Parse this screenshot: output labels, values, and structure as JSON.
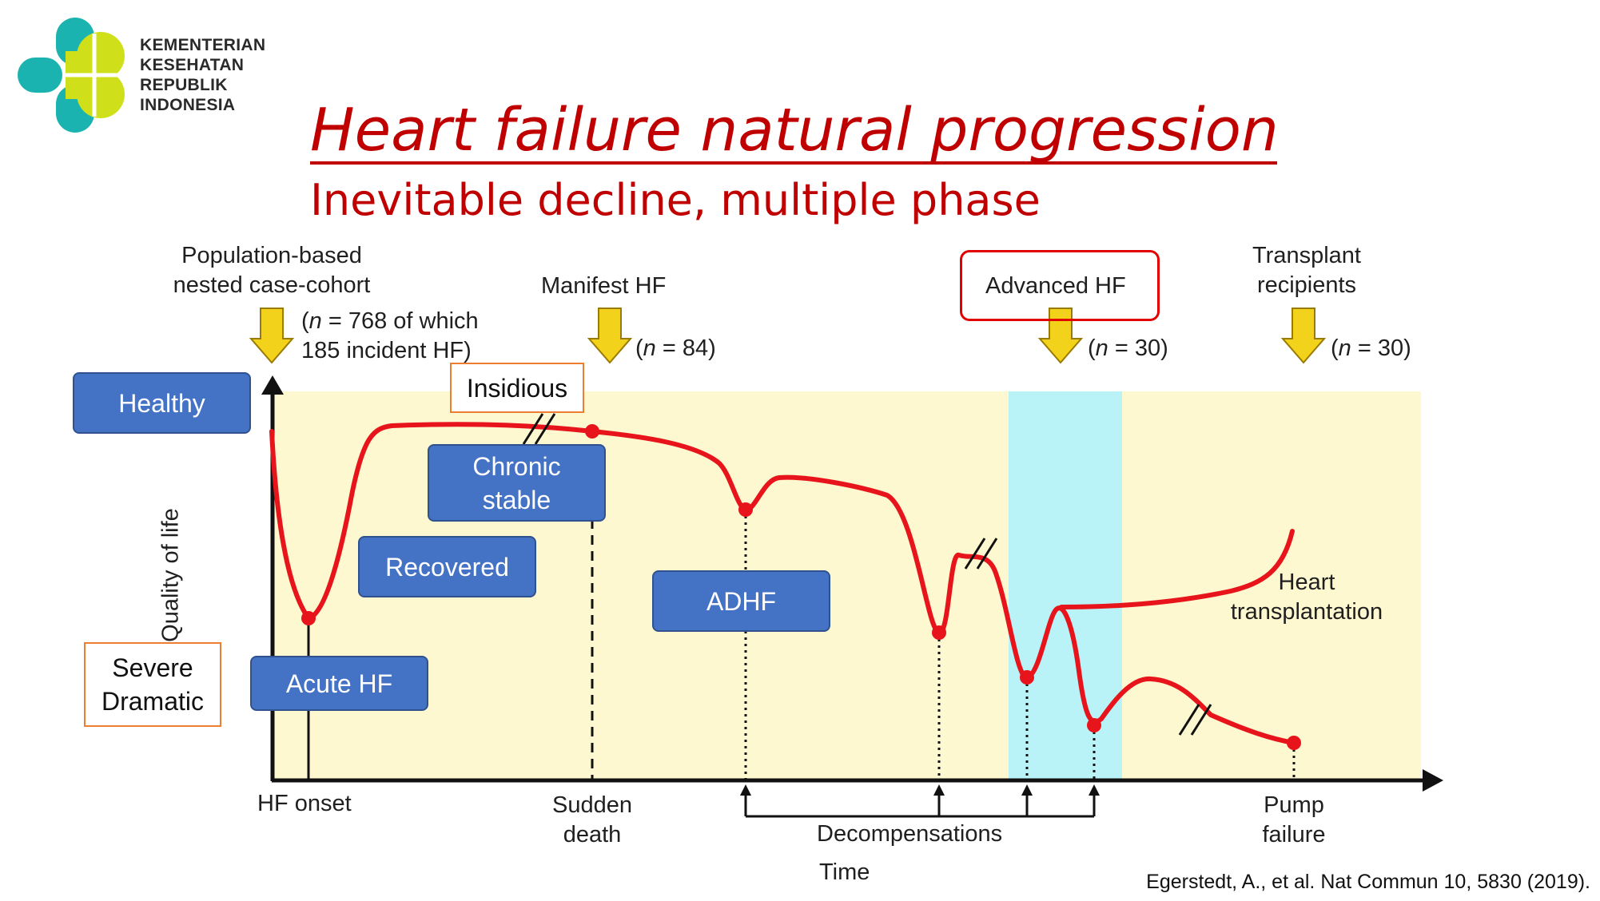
{
  "logo": {
    "line1": "KEMENTERIAN",
    "line2": "KESEHATAN",
    "line3": "REPUBLIK",
    "line4": "INDONESIA"
  },
  "title": "Heart failure natural progression",
  "subtitle": "Inevitable decline, multiple phase",
  "cohorts": {
    "population": {
      "line1": "Population-based",
      "line2": "nested case-cohort",
      "n_prefix": "(",
      "n_var": "n",
      "n_rest": " = 768 of which",
      "n_line2": "185 incident HF)"
    },
    "manifest": {
      "label": "Manifest HF",
      "n_prefix": "(",
      "n_var": "n",
      "n_rest": " = 84)"
    },
    "advanced": {
      "label": "Advanced HF",
      "n_prefix": "(",
      "n_var": "n",
      "n_rest": " = 30)"
    },
    "transplant": {
      "line1": "Transplant",
      "line2": "recipients",
      "n_prefix": "(",
      "n_var": "n",
      "n_rest": " = 30)"
    }
  },
  "stages": {
    "healthy": "Healthy",
    "insidious": "Insidious",
    "chronic_stable_line1": "Chronic",
    "chronic_stable_line2": "stable",
    "recovered": "Recovered",
    "adhf": "ADHF",
    "acute_hf": "Acute HF",
    "severe_line1": "Severe",
    "severe_line2": "Dramatic"
  },
  "axes": {
    "ylabel": "Quality of life",
    "xlabel": "Time"
  },
  "events": {
    "hf_onset": "HF onset",
    "sudden_death_line1": "Sudden",
    "sudden_death_line2": "death",
    "decompensations": "Decompensations",
    "pump_failure_line1": "Pump",
    "pump_failure_line2": "failure",
    "heart_transplantation_line1": "Heart",
    "heart_transplantation_line2": "transplantation"
  },
  "citation": "Egerstedt, A., et al. Nat Commun 10, 5830 (2019).",
  "colors": {
    "title_red": "#c00000",
    "curve_red": "#e8141b",
    "plot_bg": "#fdf8d0",
    "advanced_band": "#b9f2f7",
    "arrow_yellow": "#f2d21b",
    "stage_blue": "#4472c4",
    "orange_border": "#ed7d31",
    "logo_teal": "#1ab3b0",
    "logo_green": "#cfe01a"
  }
}
